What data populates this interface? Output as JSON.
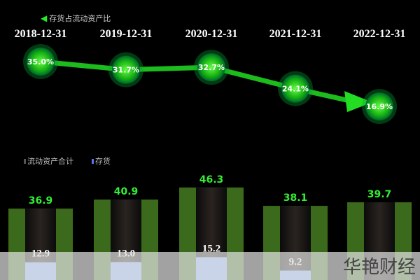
{
  "chart_data": [
    {
      "type": "line",
      "legend": [
        {
          "name": "存货占流动资产比",
          "color": "#22dd22"
        }
      ],
      "categories": [
        "2018-12-31",
        "2019-12-31",
        "2020-12-31",
        "2021-12-31",
        "2022-12-31"
      ],
      "series": [
        {
          "name": "存货占流动资产比",
          "values": [
            35.0,
            31.7,
            32.7,
            24.1,
            16.9
          ],
          "labels": [
            "35.0%",
            "31.7%",
            "32.7%",
            "24.1%",
            "16.9%"
          ]
        }
      ]
    },
    {
      "type": "bar",
      "legend": [
        {
          "name": "流动资产合计",
          "color": "#3d6a1e"
        },
        {
          "name": "存货",
          "color": "#8fb4ff"
        }
      ],
      "categories": [
        "2018-12-31",
        "2019-12-31",
        "2020-12-31",
        "2021-12-31",
        "2022-12-31"
      ],
      "series": [
        {
          "name": "流动资产合计",
          "values": [
            36.9,
            40.9,
            46.3,
            38.1,
            39.7
          ],
          "labels": [
            "36.9",
            "40.9",
            "46.3",
            "38.1",
            "39.7"
          ]
        },
        {
          "name": "存货",
          "values": [
            12.9,
            13.0,
            15.2,
            9.2,
            null
          ],
          "labels": [
            "12.9",
            "13.0",
            "15.2",
            "9.2",
            ""
          ]
        }
      ]
    }
  ],
  "watermark": "华艳财经"
}
